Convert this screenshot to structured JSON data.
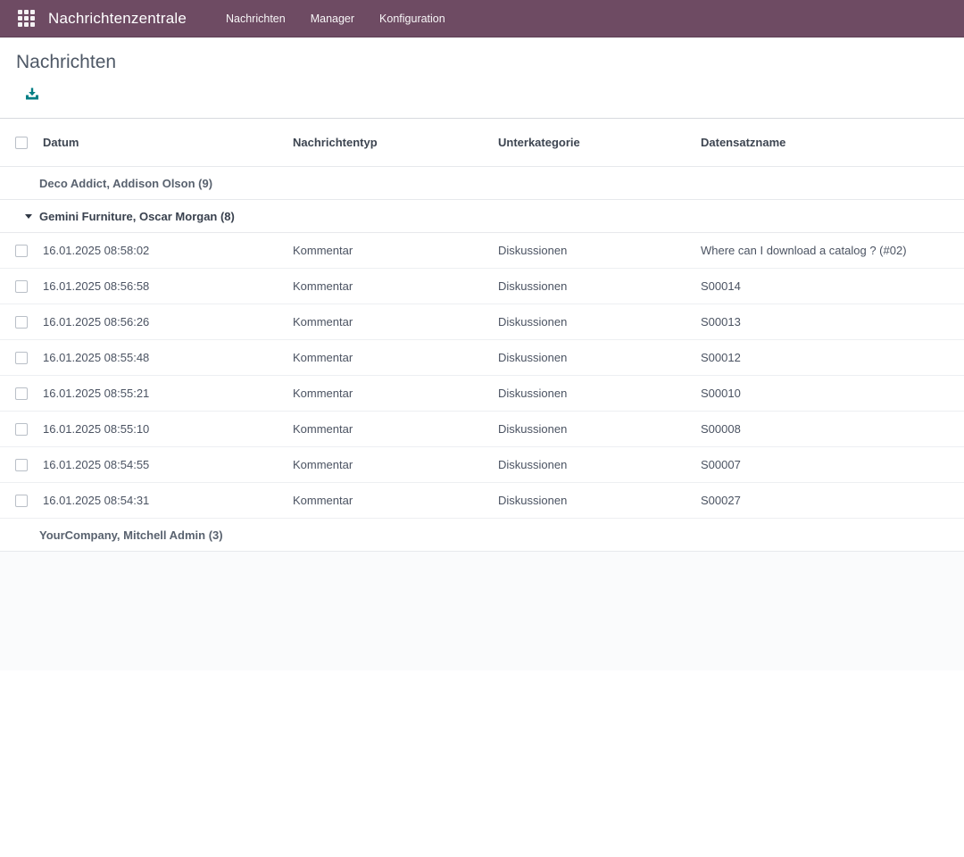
{
  "colors": {
    "navbar_bg": "#6e4b63",
    "accent_teal": "#017e84",
    "title_text": "#4e5866"
  },
  "navbar": {
    "brand": "Nachrichtenzentrale",
    "menus": [
      {
        "label": "Nachrichten"
      },
      {
        "label": "Manager"
      },
      {
        "label": "Konfiguration"
      }
    ]
  },
  "page": {
    "title": "Nachrichten"
  },
  "toolbar": {
    "export_icon": "download-icon"
  },
  "table": {
    "columns": [
      "Datum",
      "Nachrichtentyp",
      "Unterkategorie",
      "Datensatzname"
    ],
    "groups": [
      {
        "label": "Deco Addict, Addison Olson (9)",
        "expanded": false,
        "rows": []
      },
      {
        "label": "Gemini Furniture, Oscar Morgan (8)",
        "expanded": true,
        "rows": [
          {
            "datum": "16.01.2025 08:58:02",
            "nachrichtentyp": "Kommentar",
            "unterkategorie": "Diskussionen",
            "datensatzname": "Where can I download a catalog ? (#02)"
          },
          {
            "datum": "16.01.2025 08:56:58",
            "nachrichtentyp": "Kommentar",
            "unterkategorie": "Diskussionen",
            "datensatzname": "S00014"
          },
          {
            "datum": "16.01.2025 08:56:26",
            "nachrichtentyp": "Kommentar",
            "unterkategorie": "Diskussionen",
            "datensatzname": "S00013"
          },
          {
            "datum": "16.01.2025 08:55:48",
            "nachrichtentyp": "Kommentar",
            "unterkategorie": "Diskussionen",
            "datensatzname": "S00012"
          },
          {
            "datum": "16.01.2025 08:55:21",
            "nachrichtentyp": "Kommentar",
            "unterkategorie": "Diskussionen",
            "datensatzname": "S00010"
          },
          {
            "datum": "16.01.2025 08:55:10",
            "nachrichtentyp": "Kommentar",
            "unterkategorie": "Diskussionen",
            "datensatzname": "S00008"
          },
          {
            "datum": "16.01.2025 08:54:55",
            "nachrichtentyp": "Kommentar",
            "unterkategorie": "Diskussionen",
            "datensatzname": "S00007"
          },
          {
            "datum": "16.01.2025 08:54:31",
            "nachrichtentyp": "Kommentar",
            "unterkategorie": "Diskussionen",
            "datensatzname": "S00027"
          }
        ]
      },
      {
        "label": "YourCompany, Mitchell Admin (3)",
        "expanded": false,
        "rows": []
      }
    ]
  }
}
